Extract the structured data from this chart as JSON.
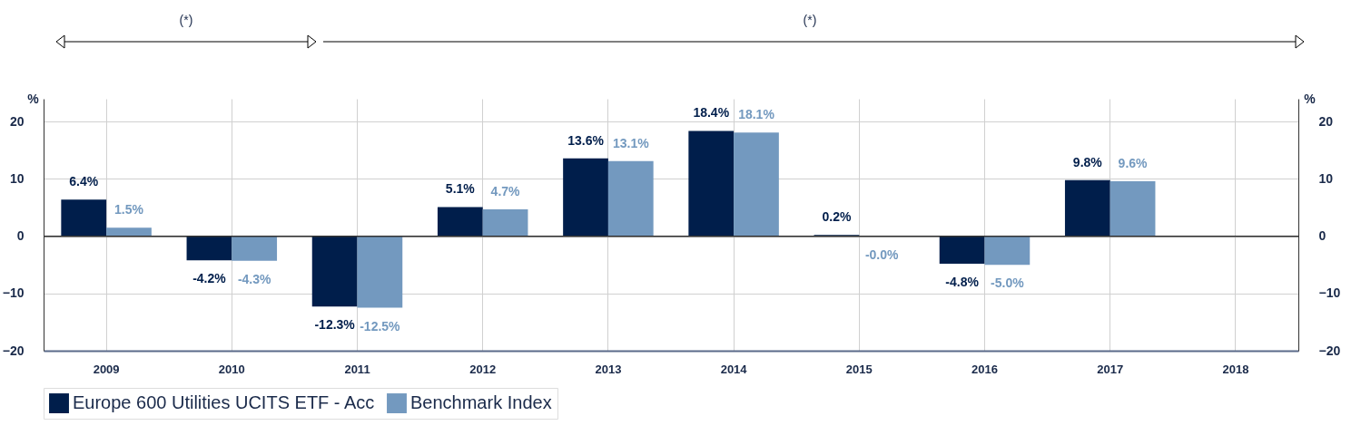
{
  "chart_data": {
    "type": "bar",
    "categories": [
      "2009",
      "2010",
      "2011",
      "2012",
      "2013",
      "2014",
      "2015",
      "2016",
      "2017",
      "2018"
    ],
    "series": [
      {
        "name": "Europe 600 Utilities UCITS ETF - Acc",
        "color": "#001e4b",
        "values": [
          6.4,
          -4.2,
          -12.3,
          5.1,
          13.6,
          18.4,
          0.2,
          -4.8,
          9.8,
          null
        ],
        "value_labels": [
          "6.4%",
          "-4.2%",
          "-12.3%",
          "5.1%",
          "13.6%",
          "18.4%",
          "0.2%",
          "-4.8%",
          "9.8%",
          null
        ]
      },
      {
        "name": "Benchmark Index",
        "color": "#7399bf",
        "values": [
          1.5,
          -4.3,
          -12.5,
          4.7,
          13.1,
          18.1,
          -0.04,
          -5.0,
          9.6,
          null
        ],
        "value_labels": [
          "1.5%",
          "-4.3%",
          "-12.5%",
          "4.7%",
          "13.1%",
          "18.1%",
          "-0.0%",
          "-5.0%",
          "9.6%",
          null
        ]
      }
    ],
    "ylim": [
      -20,
      24
    ],
    "yticks": [
      -20,
      -10,
      0,
      10,
      20
    ],
    "ylabel": "%",
    "y2lim": [
      -20,
      24
    ],
    "y2ticks": [
      -20,
      -10,
      0,
      10,
      20
    ],
    "y2label": "%",
    "ref_lines": [
      {
        "axis": "y",
        "value": 0,
        "color": "#333333"
      }
    ],
    "annotations": [
      "(*)",
      "(*)"
    ],
    "grid": true,
    "legend": "bottom"
  }
}
